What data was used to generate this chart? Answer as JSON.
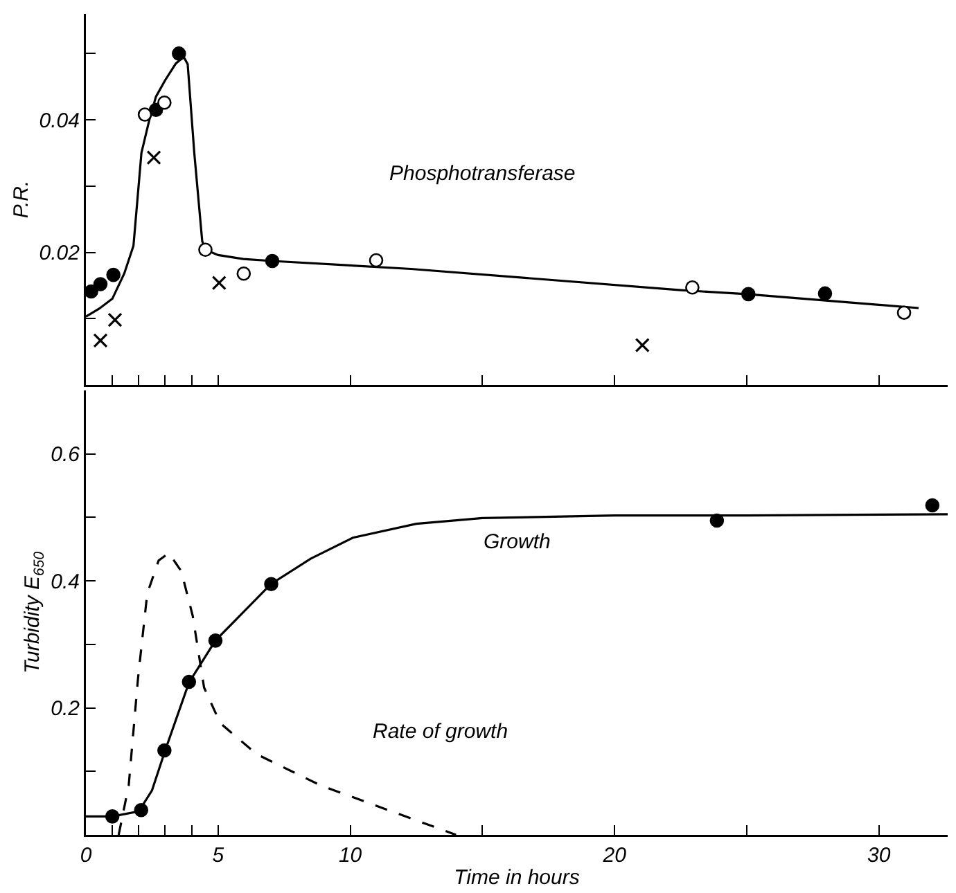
{
  "chart_data": [
    {
      "type": "line",
      "ylabel": "P.R.",
      "tick_labels": "y",
      "xlim": [
        0,
        32.6
      ],
      "xticks": [
        {
          "value": 1,
          "label": null
        },
        {
          "value": 2,
          "label": null
        },
        {
          "value": 3,
          "label": null
        },
        {
          "value": 4,
          "label": null
        },
        {
          "value": 5,
          "label": null
        },
        {
          "value": 10,
          "label": null
        },
        {
          "value": 15,
          "label": null
        },
        {
          "value": 20,
          "label": null
        },
        {
          "value": 25,
          "label": null
        },
        {
          "value": 30,
          "label": null
        }
      ],
      "ylim": [
        0,
        0.056
      ],
      "yticks": [
        {
          "value": 0.01,
          "label": null
        },
        0.02,
        {
          "value": 0.03,
          "label": null
        },
        0.04,
        {
          "value": 0.05,
          "label": null
        }
      ],
      "annotations": [
        "Phosphotransferase"
      ],
      "series": [
        {
          "type": "line",
          "color": "#000000",
          "marker": "none",
          "line_style": "solid",
          "x": [
            0,
            0.5,
            1,
            1.45,
            1.8,
            2.1,
            2.4,
            2.65,
            3.0,
            3.4,
            3.7,
            3.85,
            4.1,
            4.4,
            4.52,
            5.0,
            5.95,
            7.05,
            12.3,
            22.5,
            25,
            31.5
          ],
          "values": [
            0.0103,
            0.0115,
            0.013,
            0.0168,
            0.021,
            0.035,
            0.04,
            0.0435,
            0.046,
            0.0485,
            0.0495,
            0.0484,
            0.035,
            0.0217,
            0.0204,
            0.0196,
            0.019,
            0.0187,
            0.0175,
            0.0143,
            0.0137,
            0.0116
          ]
        },
        {
          "type": "scatter",
          "color": "#000000",
          "marker": "circle",
          "x": [
            0.2,
            0.55,
            1.04,
            2.65,
            3.52,
            7.05,
            25.06,
            27.96
          ],
          "values": [
            0.0141,
            0.0152,
            0.0166,
            0.0415,
            0.05,
            0.0187,
            0.0137,
            0.0138
          ]
        },
        {
          "type": "scatter",
          "color": "#ffffff",
          "marker": "circle",
          "x": [
            2.23,
            2.97,
            4.52,
            5.97,
            10.98,
            22.94,
            30.95
          ],
          "values": [
            0.0408,
            0.0426,
            0.0204,
            0.0168,
            0.0188,
            0.0147,
            0.0109
          ]
        },
        {
          "type": "scatter",
          "color": "#000000",
          "marker": "cross",
          "x": [
            0.55,
            1.1,
            2.57,
            5.04,
            21.05
          ],
          "values": [
            0.0067,
            0.0098,
            0.0343,
            0.0154,
            0.006
          ]
        }
      ]
    },
    {
      "type": "line",
      "ylabel": "Turbidity E$_{650}$",
      "xlabel": "Time in hours",
      "xlim": [
        0,
        32.6
      ],
      "xticks": [
        0,
        {
          "value": 1,
          "label": null
        },
        {
          "value": 2,
          "label": null
        },
        {
          "value": 3,
          "label": null
        },
        {
          "value": 4,
          "label": null
        },
        5,
        10,
        {
          "value": 15,
          "label": null
        },
        20,
        {
          "value": 25,
          "label": null
        },
        30
      ],
      "ylim": [
        0,
        0.7
      ],
      "yticks": [
        {
          "value": 0.1,
          "label": null
        },
        0.2,
        {
          "value": 0.3,
          "label": null
        },
        0.4,
        {
          "value": 0.5,
          "label": null
        },
        0.6
      ],
      "annotations": [
        "Growth",
        "Rate of growth"
      ],
      "series": [
        {
          "type": "line",
          "color": "#000000",
          "marker": "none",
          "line_style": "solid",
          "x": [
            0,
            1,
            2,
            2.5,
            3,
            3.9,
            4.9,
            7,
            8.5,
            10.1,
            12.5,
            15,
            20,
            25,
            32.6
          ],
          "values": [
            0.029,
            0.029,
            0.037,
            0.07,
            0.133,
            0.24,
            0.306,
            0.395,
            0.435,
            0.468,
            0.49,
            0.499,
            0.503,
            0.503,
            0.505
          ]
        },
        {
          "type": "line",
          "color": "#000000",
          "marker": "none",
          "line_style": "dashed",
          "x": [
            1.24,
            1.62,
            1.97,
            2.32,
            2.75,
            3.14,
            3.61,
            4.04,
            4.47,
            5.08,
            6.46,
            8.87,
            14.0
          ],
          "values": [
            0,
            0.078,
            0.246,
            0.38,
            0.432,
            0.444,
            0.415,
            0.345,
            0.232,
            0.176,
            0.127,
            0.078,
            0
          ]
        },
        {
          "type": "scatter",
          "color": "#000000",
          "marker": "circle",
          "x": [
            1.0,
            2.09,
            2.97,
            3.9,
            4.9,
            7.01,
            23.87,
            32.02
          ],
          "values": [
            0.029,
            0.039,
            0.133,
            0.241,
            0.306,
            0.395,
            0.495,
            0.519
          ]
        }
      ]
    }
  ]
}
